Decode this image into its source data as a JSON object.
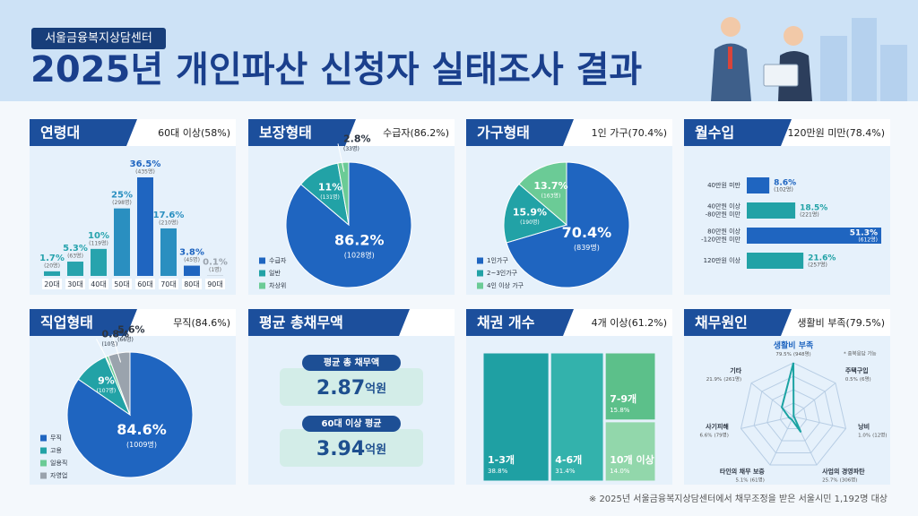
{
  "header": {
    "organization": "서울금융복지상담센터",
    "title": "2025년 개인파산 신청자 실태조사 결과"
  },
  "chart_data": [
    {
      "type": "bar",
      "title": "연령대",
      "subtitle": "60대 이상(58%)",
      "categories": [
        "20대",
        "30대",
        "40대",
        "50대",
        "60대",
        "70대",
        "80대",
        "90대"
      ],
      "values": [
        1.7,
        5.3,
        10,
        25,
        36.5,
        17.6,
        3.8,
        0.1
      ],
      "value_labels": [
        "1.7%",
        "5.3%",
        "10%",
        "25%",
        "36.5%",
        "17.6%",
        "3.8%",
        "0.1%"
      ],
      "count_labels": [
        "(20명)",
        "(63명)",
        "(119명)",
        "(298명)",
        "(435명)",
        "(210명)",
        "(45명)",
        "(1명)"
      ],
      "colors": [
        "#27a3ad",
        "#27a3ad",
        "#27a3ad",
        "#2a8fc0",
        "#1f65c0",
        "#2a8fc0",
        "#1f65c0",
        "#9aa3ad"
      ]
    },
    {
      "type": "pie",
      "title": "보장형태",
      "subtitle": "수급자(86.2%)",
      "categories": [
        "수급자",
        "일반",
        "차상위"
      ],
      "values": [
        86.2,
        11,
        2.8
      ],
      "value_labels": [
        "86.2%",
        "11%",
        "2.8%"
      ],
      "count_labels": [
        "(1028명)",
        "(131명)",
        "(33명)"
      ],
      "colors": [
        "#1f65c0",
        "#22a2a6",
        "#6bcb96"
      ]
    },
    {
      "type": "pie",
      "title": "가구형태",
      "subtitle": "1인 가구(70.4%)",
      "categories": [
        "1인가구",
        "2~3인가구",
        "4인 이상 가구"
      ],
      "values": [
        70.4,
        15.9,
        13.7
      ],
      "value_labels": [
        "70.4%",
        "15.9%",
        "13.7%"
      ],
      "count_labels": [
        "(839명)",
        "(190명)",
        "(163명)"
      ],
      "colors": [
        "#1f65c0",
        "#22a2a6",
        "#6bcb96"
      ]
    },
    {
      "type": "hbar",
      "title": "월수입",
      "subtitle": "120만원 미만(78.4%)",
      "categories": [
        [
          "40만원 미만"
        ],
        [
          "40만원 이상",
          "-80만원 미만"
        ],
        [
          "80만원 이상",
          "-120만원 미만"
        ],
        [
          "120만원 이상"
        ]
      ],
      "values": [
        8.6,
        18.5,
        51.3,
        21.6
      ],
      "value_labels": [
        "8.6%",
        "18.5%",
        "51.3%",
        "21.6%"
      ],
      "count_labels": [
        "(102명)",
        "(221명)",
        "(612명)",
        "(257명)"
      ],
      "colors": [
        "#1f65c0",
        "#22a2a6",
        "#1f65c0",
        "#22a2a6"
      ]
    },
    {
      "type": "pie",
      "title": "직업형태",
      "subtitle": "무직(84.6%)",
      "categories": [
        "무직",
        "고용",
        "일용직",
        "자영업"
      ],
      "values": [
        84.6,
        9,
        0.8,
        5.6
      ],
      "value_labels": [
        "84.6%",
        "9%",
        "0.8%",
        "5.6%"
      ],
      "count_labels": [
        "(1009명)",
        "(107명)",
        "(10명)",
        "(66명)"
      ],
      "colors": [
        "#1f65c0",
        "#22a2a6",
        "#6bcb96",
        "#9aa3ad"
      ]
    },
    {
      "type": "stat",
      "title": "평균 총채무액",
      "items": [
        {
          "label": "평균 총 채무액",
          "value": 2.87,
          "unit": "억원"
        },
        {
          "label": "60대 이상 평균",
          "value": 3.94,
          "unit": "억원"
        }
      ]
    },
    {
      "type": "treemap",
      "title": "채권 개수",
      "subtitle": "4개 이상(61.2%)",
      "categories": [
        "1-3개",
        "4-6개",
        "7-9개",
        "10개 이상"
      ],
      "values": [
        38.8,
        31.4,
        15.8,
        14.0
      ],
      "value_labels": [
        "38.8%",
        "31.4%",
        "15.8%",
        "14.0%"
      ],
      "colors": [
        "#1fa0a3",
        "#33b2ac",
        "#5cc08a",
        "#92d7ab"
      ]
    },
    {
      "type": "radar",
      "title": "채무원인",
      "subtitle": "생활비 부족(79.5%)",
      "note": "* 중복응답 가능",
      "categories": [
        "생활비 부족",
        "주택구입",
        "낭비",
        "사업의 경영파탄",
        "타인의 채무 보증",
        "사기피해",
        "기타"
      ],
      "values": [
        79.5,
        0.5,
        1.0,
        25.7,
        5.1,
        6.6,
        21.9
      ],
      "value_labels": [
        "79.5%",
        "0.5%",
        "1.0%",
        "25.7%",
        "5.1%",
        "6.6%",
        "21.9%"
      ],
      "count_labels": [
        "(948명)",
        "(6명)",
        "(12명)",
        "(306명)",
        "(61명)",
        "(79명)",
        "(261명)"
      ],
      "color": "#1ca3a3"
    }
  ],
  "footer": "※ 2025년 서울금융복지상담센터에서 채무조정을 받은 서울시민 1,192명 대상"
}
